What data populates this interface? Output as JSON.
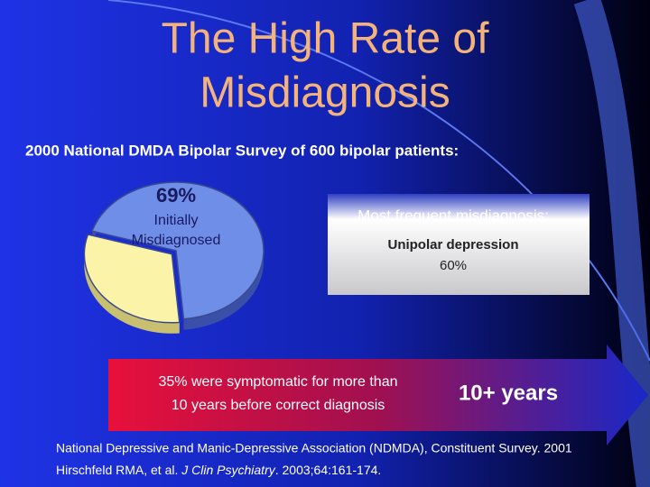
{
  "slide": {
    "title_lines": [
      "The High Rate of",
      "Misdiagnosis"
    ],
    "subtitle": "2000 National DMDA Bipolar Survey  of 600 bipolar patients:",
    "box": {
      "heading": "Most frequent misdiagnosis:",
      "line1": "Unipolar depression",
      "line2": "60%"
    },
    "arrow": {
      "text_lines": [
        "35% were symptomatic for more than",
        "10 years before correct diagnosis"
      ],
      "highlight": "10+ years"
    },
    "citation": {
      "line1": "National Depressive and Manic-Depressive Association (NDMDA), Constituent Survey.  2001",
      "line2_before": "Hirschfeld RMA, et al. ",
      "line2_journal": "J Clin Psychiatry",
      "line2_after": ". 2003;64:161-174."
    }
  },
  "chart_data": {
    "type": "pie",
    "categories": [
      "Initially Misdiagnosed",
      null
    ],
    "values": [
      69,
      31
    ],
    "value_labels": [
      "69%",
      null
    ],
    "colors": [
      "#6f8ee8",
      "#fbf3a8"
    ]
  }
}
